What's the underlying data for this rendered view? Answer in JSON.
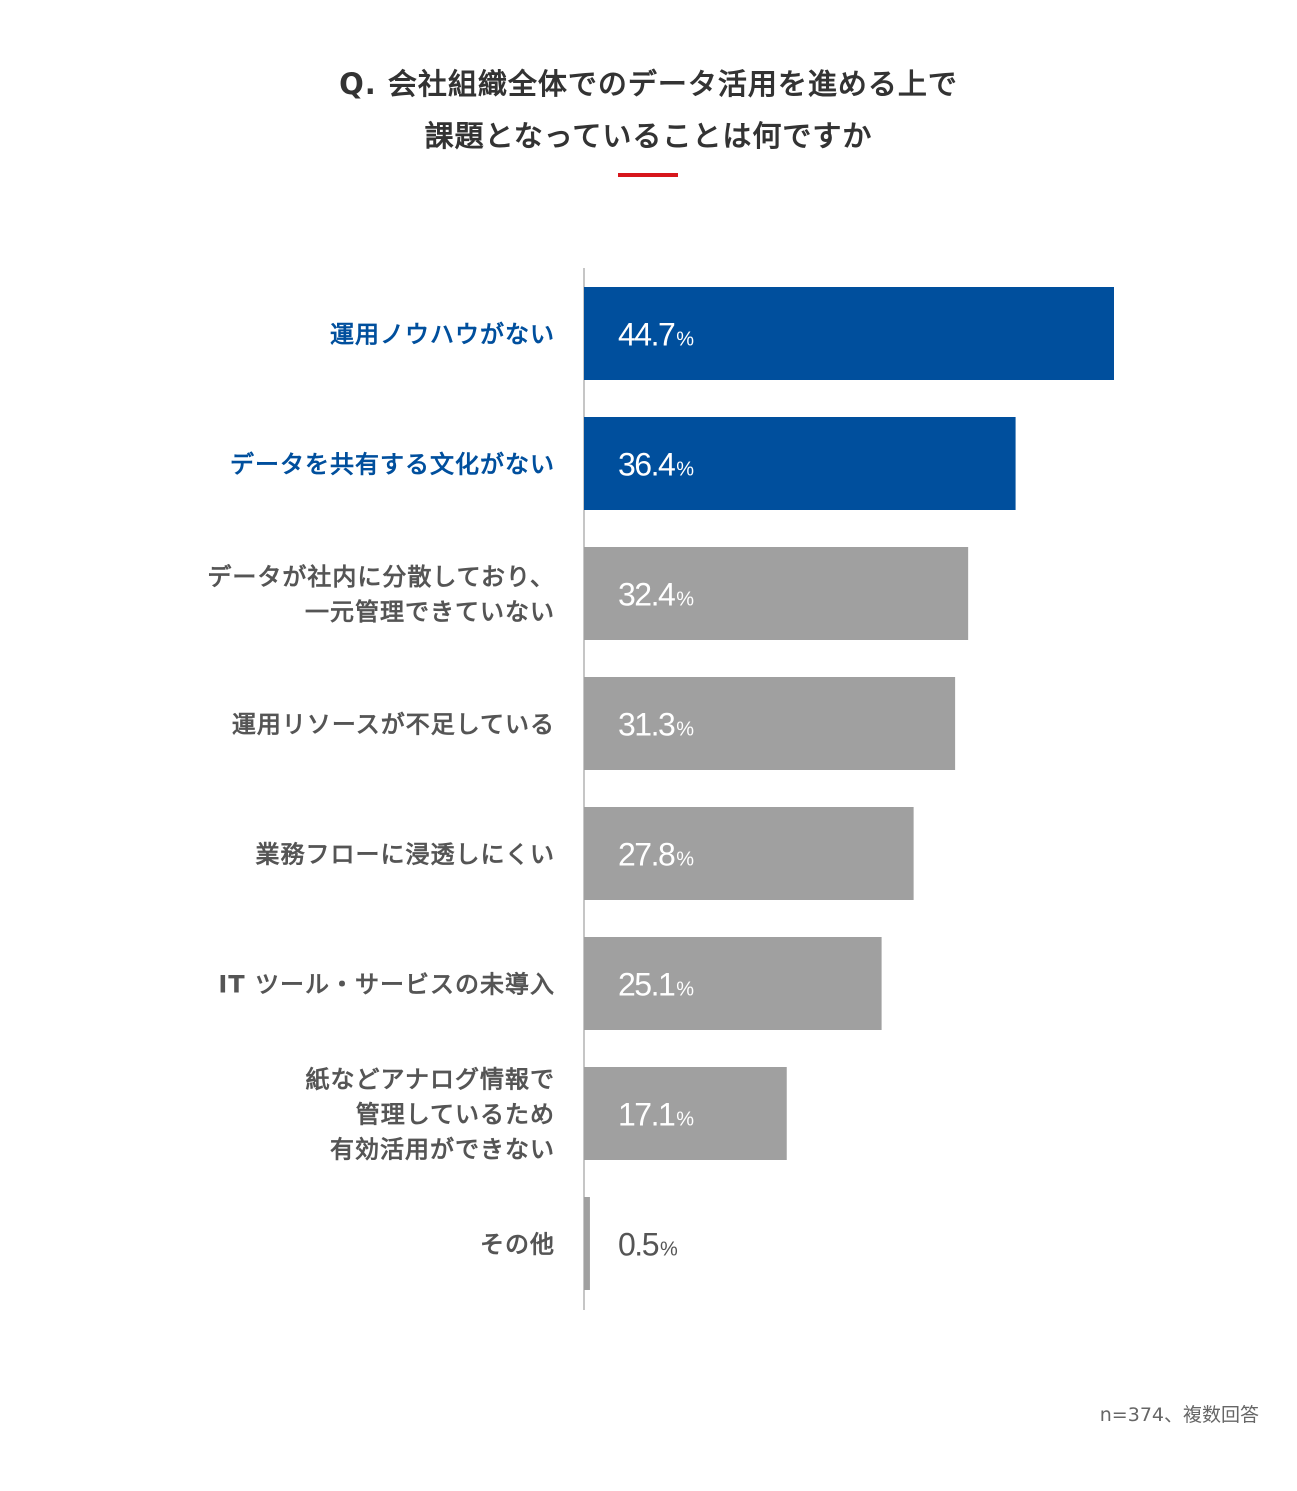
{
  "page": {
    "title_line1": "Q. 会社組織全体でのデータ活用を進める上で",
    "title_line2": "課題となっていることは何ですか",
    "footnote": "n=374、複数回答"
  },
  "colors": {
    "highlight": "#004f9d",
    "default": "#a0a0a0",
    "accent": "#d7161c",
    "label_default": "#555555",
    "axis": "#b3b3b3"
  },
  "chart_data": {
    "type": "bar",
    "orientation": "horizontal",
    "value_suffix": "%",
    "categories": [
      [
        "運用ノウハウがない"
      ],
      [
        "データを共有する文化がない"
      ],
      [
        "データが社内に分散しており、",
        "一元管理できていない"
      ],
      [
        "運用リソースが不足している"
      ],
      [
        "業務フローに浸透しにくい"
      ],
      [
        "IT ツール・サービスの未導入"
      ],
      [
        "紙などアナログ情報で",
        "管理しているため",
        "有効活用ができない"
      ],
      [
        "その他"
      ]
    ],
    "values": [
      44.7,
      36.4,
      32.4,
      31.3,
      27.8,
      25.1,
      17.1,
      0.5
    ],
    "highlighted": [
      true,
      true,
      false,
      false,
      false,
      false,
      false,
      false
    ],
    "xlim": [
      0,
      50
    ]
  }
}
